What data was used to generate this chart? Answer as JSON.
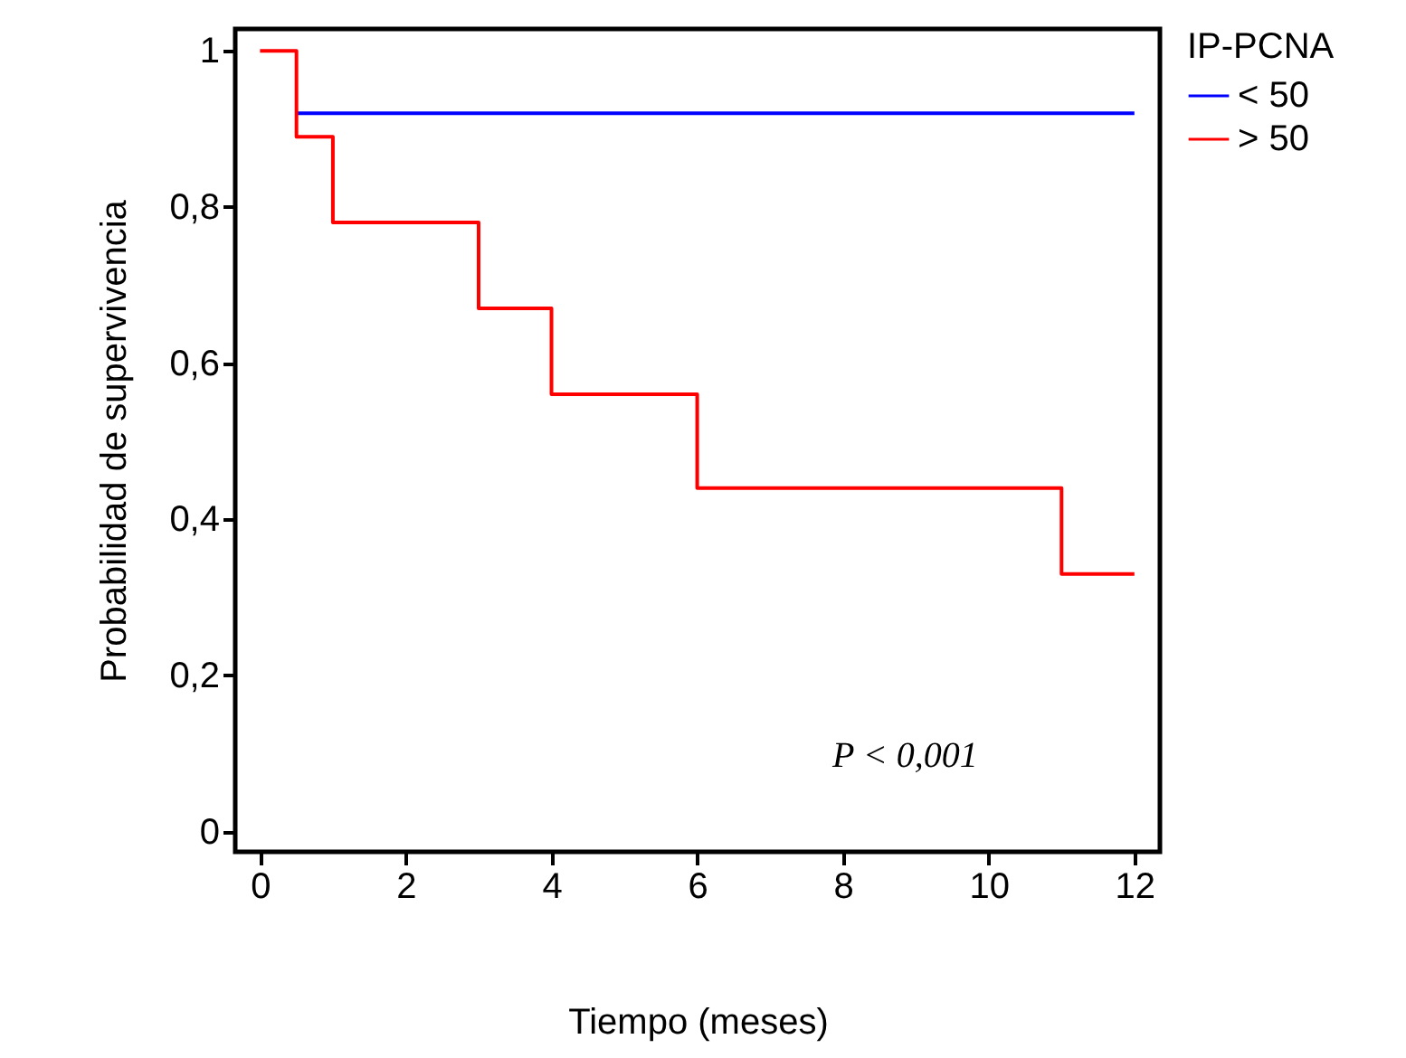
{
  "chart_data": {
    "type": "step",
    "xlabel": "Tiempo (meses)",
    "ylabel": "Probabilidad de supervivencia",
    "legend_title": "IP-PCNA",
    "series": [
      {
        "name": "< 50",
        "color": "#0000ff",
        "x": [
          0.5,
          12
        ],
        "values": [
          0.92,
          0.92
        ]
      },
      {
        "name": "> 50",
        "color": "#ff0000",
        "x": [
          0,
          0.5,
          1,
          3,
          4,
          6,
          11,
          12
        ],
        "values": [
          1,
          0.89,
          0.78,
          0.67,
          0.56,
          0.44,
          0.33,
          0.33
        ]
      }
    ],
    "xlim": [
      -0.34,
      12.35
    ],
    "xticks": [
      0,
      2,
      4,
      6,
      8,
      10,
      12
    ],
    "ylim": [
      -0.026,
      1.028
    ],
    "yticks": [
      0,
      {
        "value": 0.2,
        "label": "0,2"
      },
      {
        "value": 0.4,
        "label": "0,4"
      },
      {
        "value": 0.6,
        "label": "0,6"
      },
      {
        "value": 0.8,
        "label": "0,8"
      },
      1
    ],
    "annotations": [
      "P < 0,001"
    ],
    "grid": false,
    "legend": "top right",
    "marker": "none",
    "line_style": "solid"
  }
}
